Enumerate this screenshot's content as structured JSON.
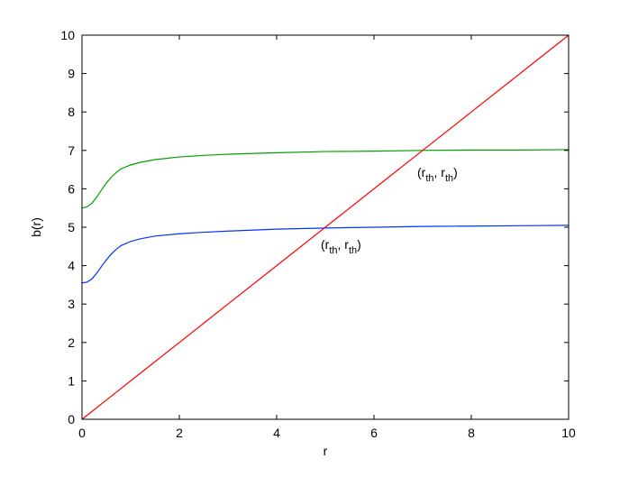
{
  "chart_data": {
    "type": "line",
    "x_label": "r",
    "y_label": "b(r)",
    "x": [
      0,
      0.1,
      0.2,
      0.3,
      0.4,
      0.5,
      0.6,
      0.7,
      0.8,
      1,
      1.2,
      1.5,
      2,
      2.5,
      3,
      4,
      5,
      6,
      7,
      8,
      9,
      10
    ],
    "series": [
      {
        "color": "#00a000",
        "values": [
          5.5,
          5.53,
          5.62,
          5.78,
          5.97,
          6.15,
          6.3,
          6.42,
          6.52,
          6.62,
          6.69,
          6.76,
          6.83,
          6.87,
          6.9,
          6.94,
          6.97,
          6.98,
          7.0,
          7.01,
          7.01,
          7.02
        ]
      },
      {
        "color": "#0033ff",
        "values": [
          3.55,
          3.57,
          3.65,
          3.8,
          3.98,
          4.15,
          4.3,
          4.42,
          4.52,
          4.63,
          4.7,
          4.77,
          4.83,
          4.87,
          4.9,
          4.95,
          4.98,
          5.0,
          5.02,
          5.03,
          5.04,
          5.05
        ]
      },
      {
        "color": "#ff0000",
        "values": [
          0,
          0.1,
          0.2,
          0.3,
          0.4,
          0.5,
          0.6,
          0.7,
          0.8,
          1,
          1.2,
          1.5,
          2,
          2.5,
          3,
          4,
          5,
          6,
          7,
          8,
          9,
          10
        ]
      }
    ],
    "annotations": [
      {
        "parts": [
          "(r",
          "th",
          ", r",
          "th",
          ")"
        ]
      },
      {
        "parts": [
          "(r",
          "th",
          ", r",
          "th",
          ")"
        ]
      }
    ],
    "xlim": [
      0,
      10
    ],
    "xticks": [
      0,
      2,
      4,
      6,
      8,
      10
    ],
    "ylim": [
      0,
      10
    ],
    "yticks": [
      0,
      1,
      2,
      3,
      4,
      5,
      6,
      7,
      8,
      9,
      10
    ]
  }
}
